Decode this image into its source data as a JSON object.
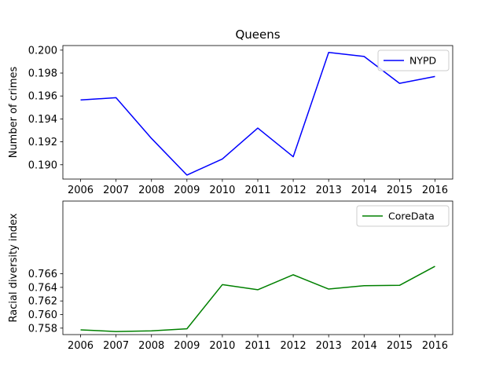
{
  "chart_data": [
    {
      "type": "line",
      "title": "Queens",
      "xlabel": "",
      "ylabel": "Number of crimes",
      "x": [
        2006,
        2007,
        2008,
        2009,
        2010,
        2011,
        2012,
        2013,
        2014,
        2015,
        2016
      ],
      "x_ticks": [
        "2006",
        "2007",
        "2008",
        "2009",
        "2010",
        "2011",
        "2012",
        "2013",
        "2014",
        "2015",
        "2016"
      ],
      "y_ticks": [
        "0.190",
        "0.192",
        "0.194",
        "0.196",
        "0.198",
        "0.200"
      ],
      "ylim": [
        0.18875,
        0.2004
      ],
      "series": [
        {
          "name": "NYPD",
          "color": "#0000ff",
          "values": [
            0.19565,
            0.19585,
            0.1923,
            0.1891,
            0.1905,
            0.1932,
            0.1907,
            0.1998,
            0.19945,
            0.1971,
            0.1977
          ]
        }
      ],
      "legend": "upper-right",
      "grid": false
    },
    {
      "type": "line",
      "title": "",
      "xlabel": "",
      "ylabel": "Racial diversity index",
      "x": [
        2006,
        2007,
        2008,
        2009,
        2010,
        2011,
        2012,
        2013,
        2014,
        2015,
        2016
      ],
      "x_ticks": [
        "2006",
        "2007",
        "2008",
        "2009",
        "2010",
        "2011",
        "2012",
        "2013",
        "2014",
        "2015",
        "2016"
      ],
      "y_ticks": [
        "0.758",
        "0.760",
        "0.762",
        "0.764",
        "0.766"
      ],
      "ylim": [
        0.75705,
        0.7767
      ],
      "series": [
        {
          "name": "CoreData",
          "color": "#008000",
          "values": [
            0.75775,
            0.7575,
            0.7576,
            0.7579,
            0.7644,
            0.76365,
            0.76585,
            0.76375,
            0.76425,
            0.7643,
            0.7671
          ]
        }
      ],
      "legend": "upper-right",
      "grid": false
    }
  ]
}
